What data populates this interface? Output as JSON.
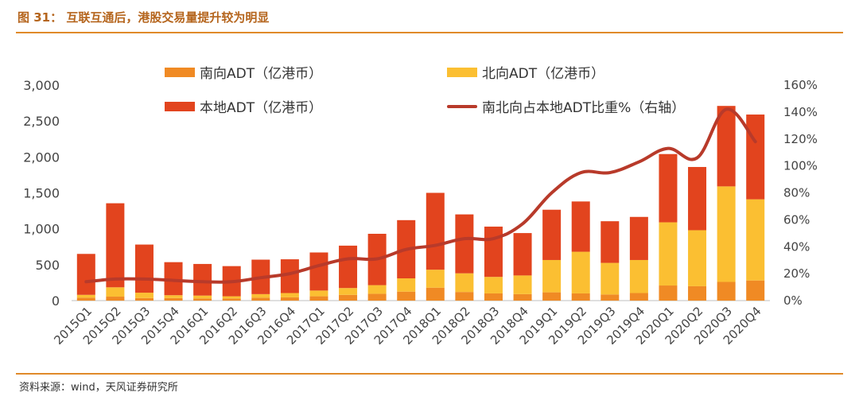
{
  "figure": {
    "title": "图 31：  互联互通后，港股交易量提升较为明显",
    "source": "资料来源：wind，天风证券研究所"
  },
  "colors": {
    "south": "#f08a24",
    "north": "#fbbf32",
    "local": "#e2441e",
    "ratio": "#b83a2a",
    "rule": "#e08a2a"
  },
  "chart_data": {
    "type": "bar",
    "stacked": true,
    "categories": [
      "2015Q1",
      "2015Q2",
      "2015Q3",
      "2015Q4",
      "2016Q1",
      "2016Q2",
      "2016Q3",
      "2016Q4",
      "2017Q1",
      "2017Q2",
      "2017Q3",
      "2017Q4",
      "2018Q1",
      "2018Q2",
      "2018Q3",
      "2018Q4",
      "2019Q1",
      "2019Q2",
      "2019Q3",
      "2019Q4",
      "2020Q1",
      "2020Q2",
      "2020Q3",
      "2020Q4"
    ],
    "series": [
      {
        "name": "南向ADT（亿港币）",
        "kind": "bar",
        "axis": "left",
        "values": [
          40,
          55,
          35,
          35,
          30,
          30,
          40,
          45,
          60,
          80,
          95,
          125,
          180,
          120,
          100,
          90,
          115,
          100,
          85,
          105,
          210,
          200,
          260,
          280
        ]
      },
      {
        "name": "北向ADT（亿港币）",
        "kind": "bar",
        "axis": "left",
        "values": [
          40,
          130,
          75,
          40,
          40,
          30,
          50,
          60,
          80,
          95,
          120,
          185,
          250,
          260,
          230,
          260,
          450,
          580,
          440,
          460,
          880,
          780,
          1330,
          1130
        ]
      },
      {
        "name": "本地ADT（亿港币）",
        "kind": "bar",
        "axis": "left",
        "values": [
          570,
          1170,
          670,
          460,
          440,
          420,
          480,
          470,
          530,
          590,
          715,
          810,
          1070,
          820,
          700,
          590,
          700,
          700,
          580,
          600,
          950,
          880,
          1120,
          1180
        ]
      },
      {
        "name": "南北向占本地ADT比重%（右轴）",
        "kind": "line",
        "axis": "right",
        "values": [
          14,
          16,
          16,
          15,
          14,
          14,
          17,
          20,
          26,
          31,
          31,
          38,
          41,
          46,
          46,
          57,
          80,
          95,
          95,
          103,
          113,
          106,
          142,
          118
        ]
      }
    ],
    "y_left": {
      "min": 0,
      "max": 3000,
      "ticks": [
        0,
        500,
        1000,
        1500,
        2000,
        2500,
        3000
      ],
      "tick_labels": [
        "0",
        "500",
        "1,000",
        "1,500",
        "2,000",
        "2,500",
        "3,000"
      ]
    },
    "y_right": {
      "min": 0,
      "max": 160,
      "ticks": [
        0,
        20,
        40,
        60,
        80,
        100,
        120,
        140,
        160
      ],
      "tick_labels": [
        "0%",
        "20%",
        "40%",
        "60%",
        "80%",
        "100%",
        "120%",
        "140%",
        "160%"
      ]
    },
    "grid": false,
    "legend": "top"
  }
}
